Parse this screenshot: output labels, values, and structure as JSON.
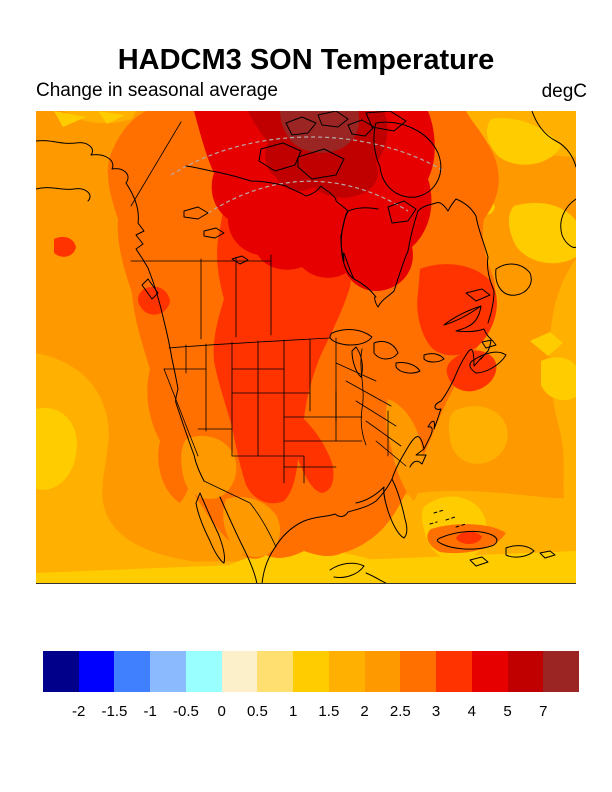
{
  "header": {
    "title": "HADCM3 SON Temperature",
    "subtitle_left": "Change in seasonal average",
    "units_label": "degC"
  },
  "colorbar": {
    "levels": [
      "-2",
      "-1.5",
      "-1",
      "-0.5",
      "0",
      "0.5",
      "1",
      "1.5",
      "2",
      "2.5",
      "3",
      "4",
      "5",
      "7"
    ],
    "colors": [
      "#00008B",
      "#0000FF",
      "#4080FF",
      "#8CBAFF",
      "#99FFFF",
      "#FBF0C9",
      "#FFDF6F",
      "#FFCC00",
      "#FFB000",
      "#FF9900",
      "#FF7000",
      "#FF3300",
      "#E60000",
      "#C00000",
      "#9B2522"
    ]
  },
  "map_data": {
    "type": "filled_contour_map",
    "region": "North America",
    "units": "degC",
    "contour_levels_degC": [
      -2,
      -1.5,
      -1,
      -0.5,
      0,
      0.5,
      1,
      1.5,
      2,
      2.5,
      3,
      4,
      5,
      7
    ],
    "region_anomalies_degC": [
      {
        "region": "High Arctic (Queen Elizabeth Islands)",
        "band": "> 7"
      },
      {
        "region": "Canadian Arctic Archipelago",
        "band": "5 to 7"
      },
      {
        "region": "Nunavut / Hudson Bay north / Baffin",
        "band": "4 to 5"
      },
      {
        "region": "Central Canada and Northern Great Plains into Texas",
        "band": "3 to 4"
      },
      {
        "region": "Quebec / Labrador",
        "band": "3 to 4"
      },
      {
        "region": "Most of continental USA and Canada",
        "band": "2.5 to 3"
      },
      {
        "region": "Pacific and Atlantic ocean margins",
        "band": "2 to 2.5"
      },
      {
        "region": "Subtropical oceans, Gulf of Mexico, Caribbean",
        "band": "1.5 to 2"
      },
      {
        "region": "Scattered ocean patches",
        "band": "1 to 1.5"
      },
      {
        "region": "Cuba local maximum",
        "band": "3 to 4"
      }
    ]
  }
}
